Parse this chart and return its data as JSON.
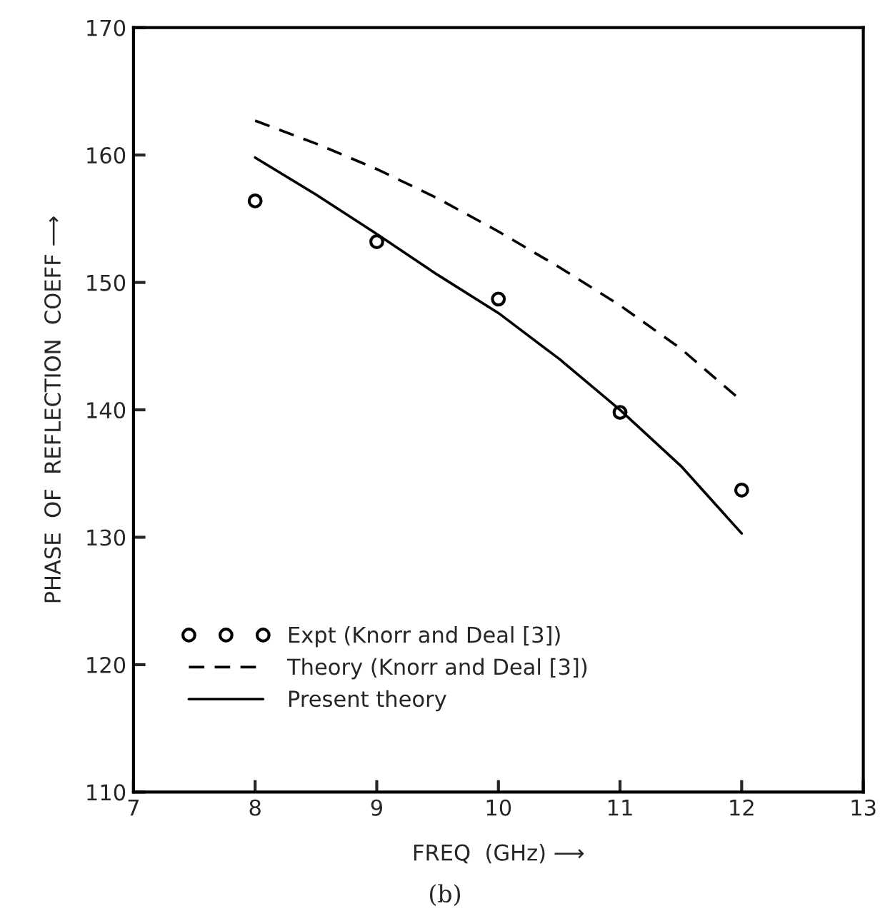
{
  "chart_data": {
    "type": "line",
    "xlabel": "FREQ  (GHz) ⟶",
    "ylabel": "PHASE  OF  REFLECTION  COEFF ⟶",
    "xlim": [
      7,
      13
    ],
    "xticks": [
      7,
      8,
      9,
      10,
      11,
      12,
      13
    ],
    "ylim": [
      110,
      170
    ],
    "yticks": [
      110,
      120,
      130,
      140,
      150,
      160,
      170
    ],
    "grid": false,
    "legend": "bottom left",
    "series": [
      {
        "name": "Expt (Knorr and Deal [3])",
        "type": "scatter",
        "marker": "circle",
        "color": "#000000",
        "x": [
          8,
          9,
          10,
          11,
          12
        ],
        "values": [
          156.4,
          153.2,
          148.7,
          139.8,
          133.7
        ]
      },
      {
        "name": "Theory (Knorr and Deal [3])",
        "line_style": "dashed",
        "color": "#000000",
        "x": [
          8,
          8.5,
          9,
          9.5,
          10,
          10.5,
          11,
          11.5,
          12
        ],
        "values": [
          162.7,
          160.9,
          158.9,
          156.6,
          154.0,
          151.2,
          148.2,
          144.8,
          140.7
        ]
      },
      {
        "name": "Present theory",
        "line_style": "solid",
        "color": "#000000",
        "x": [
          8,
          8.5,
          9,
          9.5,
          10,
          10.5,
          11,
          11.5,
          12
        ],
        "values": [
          159.8,
          156.9,
          153.8,
          150.6,
          147.6,
          144.0,
          140.0,
          135.6,
          130.3
        ]
      }
    ],
    "annotations": [
      "(b)"
    ]
  }
}
